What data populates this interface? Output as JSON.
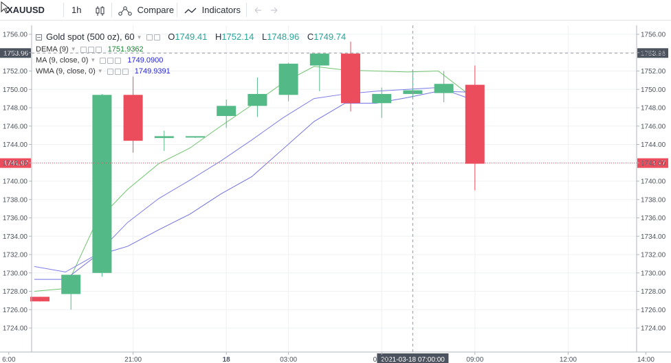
{
  "toolbar": {
    "symbol": "XAUUSD",
    "interval": "1h",
    "compare_label": "Compare",
    "indicators_label": "Indicators"
  },
  "legend": {
    "title": "Gold spot (500 oz), 60",
    "ohlc": {
      "o_label": "O",
      "o": "1749.41",
      "h_label": "H",
      "h": "1752.14",
      "l_label": "L",
      "l": "1748.96",
      "c_label": "C",
      "c": "1749.74"
    },
    "indicators": [
      {
        "label": "DEMA (9)",
        "value": "1751.9362",
        "color": "#11882e"
      },
      {
        "label": "MA (9, close, 0)",
        "value": "1749.0900",
        "color": "#2424d4"
      },
      {
        "label": "WMA (9, close, 0)",
        "value": "1749.9391",
        "color": "#2424d4"
      }
    ]
  },
  "colors": {
    "up": "#53b987",
    "down": "#eb4d5c",
    "dema": "#6fc46f",
    "ma": "#7b7bea",
    "wma": "#7070e0",
    "price_line": "#eb4d5c",
    "crosshair_label": "#4c525e"
  },
  "chart_data": {
    "type": "candlestick",
    "symbol": "XAUUSD",
    "title": "Gold spot (500 oz), 60",
    "interval": "60",
    "ylim": [
      1725,
      1757
    ],
    "yticks": [
      "1756.00",
      "1754.00",
      "1752.00",
      "1750.00",
      "1748.00",
      "1746.00",
      "1744.00",
      "1742.00",
      "1740.00",
      "1738.00",
      "1736.00",
      "1734.00",
      "1732.00",
      "1730.00",
      "1728.00",
      "1726.00",
      "1724.00"
    ],
    "xtick_labels": [
      "6:00",
      "21:00",
      "18",
      "03:00",
      "06:00",
      "09:00",
      "12:00",
      "14:00"
    ],
    "xtick_slots": [
      -1,
      3,
      6,
      8,
      11,
      14,
      17,
      19.5
    ],
    "candles": [
      {
        "o": 1727.4,
        "h": 1727.4,
        "l": 1726.9,
        "c": 1726.9
      },
      {
        "o": 1727.7,
        "h": 1729.8,
        "l": 1726.0,
        "c": 1729.8
      },
      {
        "o": 1730.0,
        "h": 1749.5,
        "l": 1729.6,
        "c": 1749.4
      },
      {
        "o": 1749.4,
        "h": 1751.4,
        "l": 1743.1,
        "c": 1744.4
      },
      {
        "o": 1744.7,
        "h": 1745.5,
        "l": 1743.3,
        "c": 1744.9
      },
      {
        "o": 1744.8,
        "h": 1744.9,
        "l": 1744.7,
        "c": 1744.9
      },
      {
        "o": 1747.1,
        "h": 1748.9,
        "l": 1745.8,
        "c": 1748.2
      },
      {
        "o": 1748.2,
        "h": 1751.3,
        "l": 1747.0,
        "c": 1749.5
      },
      {
        "o": 1749.4,
        "h": 1752.9,
        "l": 1748.7,
        "c": 1752.8
      },
      {
        "o": 1752.6,
        "h": 1753.9,
        "l": 1749.8,
        "c": 1753.9
      },
      {
        "o": 1753.9,
        "h": 1755.2,
        "l": 1747.6,
        "c": 1748.5
      },
      {
        "o": 1748.5,
        "h": 1750.2,
        "l": 1746.9,
        "c": 1749.5
      },
      {
        "o": 1749.5,
        "h": 1752.1,
        "l": 1749.0,
        "c": 1749.9
      },
      {
        "o": 1749.6,
        "h": 1752.0,
        "l": 1748.6,
        "c": 1750.6
      },
      {
        "o": 1750.5,
        "h": 1752.6,
        "l": 1739.0,
        "c": 1741.9
      }
    ],
    "series": [
      {
        "name": "DEMA (9)",
        "values": [
          1728.0,
          1728.3,
          1735.6,
          1739.1,
          1741.9,
          1743.6,
          1746.0,
          1748.3,
          1750.7,
          1752.5,
          1752.1,
          1752.0,
          1751.9,
          1752.0,
          1749.4
        ]
      },
      {
        "name": "MA (9, close, 0)",
        "values": [
          1730.7,
          1730.1,
          1732.0,
          1735.5,
          1738.1,
          1740.1,
          1742.2,
          1744.5,
          1746.9,
          1749.0,
          1749.5,
          1749.8,
          1750.0,
          1750.2,
          1749.0
        ]
      },
      {
        "name": "WMA (9, close, 0)",
        "values": [
          1729.3,
          1729.3,
          1731.9,
          1732.9,
          1734.7,
          1736.4,
          1738.6,
          1740.5,
          1743.5,
          1746.5,
          1748.5,
          1748.5,
          1749.1,
          1749.8,
          1749.7
        ]
      }
    ],
    "price_line": {
      "value": "1741.97"
    },
    "crosshair": {
      "price": "1753.96",
      "time_label": "2021-03-18 07:00:00",
      "slot": 12
    }
  }
}
